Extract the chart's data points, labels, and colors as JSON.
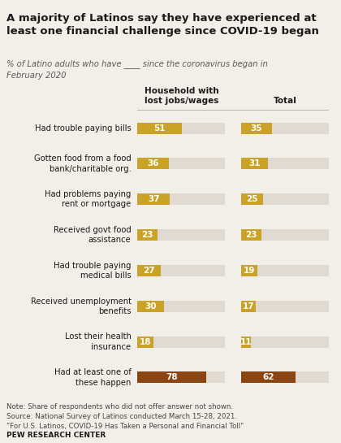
{
  "title": "A majority of Latinos say they have experienced at\nleast one financial challenge since COVID-19 began",
  "subtitle": "% of Latino adults who have ____ since the coronavirus began in\nFebruary 2020",
  "col1_header": "Household with\nlost jobs/wages",
  "col2_header": "Total",
  "categories": [
    "Had trouble paying bills",
    "Gotten food from a food\nbank/charitable org.",
    "Had problems paying\nrent or mortgage",
    "Received govt food\nassistance",
    "Had trouble paying\nmedical bills",
    "Received unemployment\nbenefits",
    "Lost their health\ninsurance",
    "Had at least one of\nthese happen"
  ],
  "household_values": [
    51,
    36,
    37,
    23,
    27,
    30,
    18,
    78
  ],
  "total_values": [
    35,
    31,
    25,
    23,
    19,
    17,
    11,
    62
  ],
  "bar_color_gold": "#C9A227",
  "bar_color_brown": "#8B4513",
  "bg_color": "#F2EFE8",
  "bar_bg_color": "#E0DAD0",
  "note": "Note: Share of respondents who did not offer answer not shown.\nSource: National Survey of Latinos conducted March 15-28, 2021.\n\"For U.S. Latinos, COVID-19 Has Taken a Personal and Financial Toll\"",
  "source_label": "PEW RESEARCH CENTER",
  "max_bar_width": 100
}
